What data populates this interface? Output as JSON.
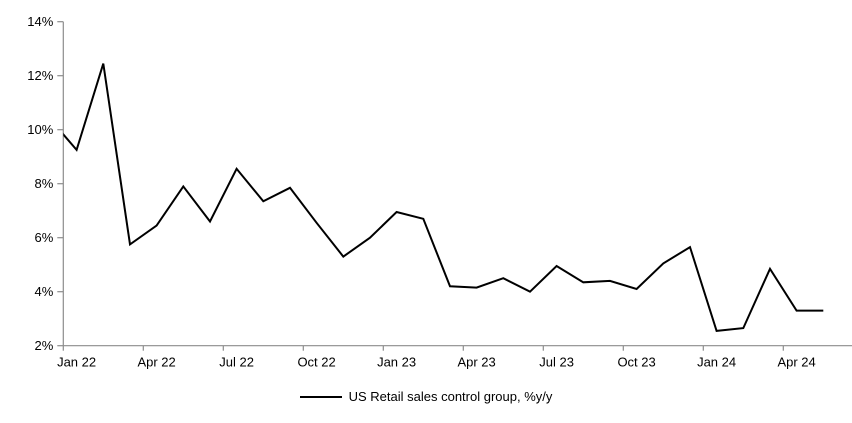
{
  "chart_data": {
    "type": "line",
    "title": "",
    "xlabel": "",
    "ylabel": "",
    "grid": false,
    "legend_position": "bottom-center",
    "ylim": [
      2,
      14
    ],
    "y_tick_step": 2,
    "y_tick_labels": [
      "2%",
      "4%",
      "6%",
      "8%",
      "10%",
      "12%",
      "14%"
    ],
    "x_tick_label_interval": 3,
    "x_tick_labels": [
      "Jan 22",
      "Apr 22",
      "Jul 22",
      "Oct 22",
      "Jan 23",
      "Apr 23",
      "Jul 23",
      "Oct 23",
      "Jan 24",
      "Apr 24"
    ],
    "x": [
      "Dec 21",
      "Jan 22",
      "Feb 22",
      "Mar 22",
      "Apr 22",
      "May 22",
      "Jun 22",
      "Jul 22",
      "Aug 22",
      "Sep 22",
      "Oct 22",
      "Nov 22",
      "Dec 22",
      "Jan 23",
      "Feb 23",
      "Mar 23",
      "Apr 23",
      "May 23",
      "Jun 23",
      "Jul 23",
      "Aug 23",
      "Sep 23",
      "Oct 23",
      "Nov 23",
      "Dec 23",
      "Jan 24",
      "Feb 24",
      "Mar 24",
      "Apr 24",
      "May 24"
    ],
    "series": [
      {
        "name": "US Retail sales control group, %y/y",
        "color": "#000000",
        "values": [
          10.4,
          9.25,
          12.45,
          5.75,
          6.45,
          7.9,
          6.6,
          8.55,
          7.35,
          7.85,
          6.55,
          5.3,
          6.0,
          6.95,
          6.7,
          4.2,
          4.15,
          4.5,
          4.0,
          4.95,
          4.35,
          4.4,
          4.1,
          5.05,
          5.65,
          2.55,
          2.65,
          4.85,
          3.3,
          3.3
        ]
      }
    ],
    "first_point_clipped_at_left_axis": true,
    "axis_color": "#8c8c8c",
    "text_color": "#000000"
  }
}
